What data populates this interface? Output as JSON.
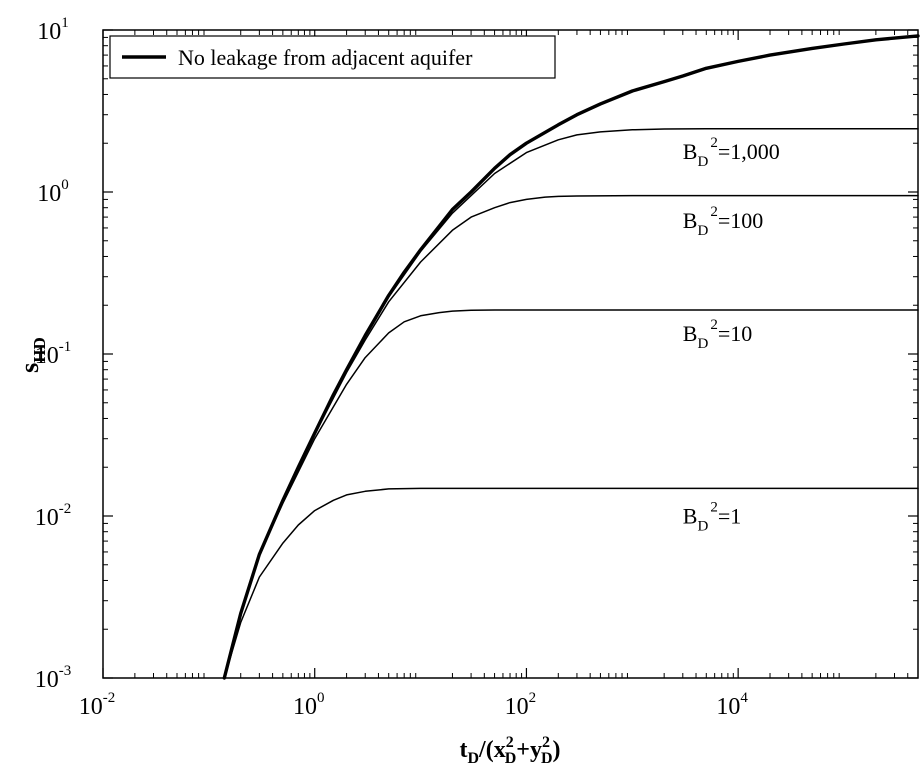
{
  "chart_data": {
    "type": "line",
    "x_scale": "log",
    "y_scale": "log",
    "xlim": [
      0.01,
      500000
    ],
    "ylim": [
      0.001,
      10
    ],
    "grid": false,
    "legend": {
      "placement": "top-left",
      "entries": [
        "No leakage from adjacent aquifer"
      ]
    },
    "xlabel": {
      "parts": [
        "t",
        "D",
        "/(x",
        "2",
        "D",
        "+y",
        "2",
        "D",
        ")"
      ]
    },
    "ylabel": {
      "base": "s",
      "sub": "HD"
    },
    "x_ticks": [
      {
        "value": 0.01,
        "base": "10",
        "exp": "-2"
      },
      {
        "value": 1,
        "base": "10",
        "exp": "0"
      },
      {
        "value": 100,
        "base": "10",
        "exp": "2"
      },
      {
        "value": 10000,
        "base": "10",
        "exp": "4"
      }
    ],
    "y_ticks": [
      {
        "value": 0.001,
        "base": "10",
        "exp": "-3"
      },
      {
        "value": 0.01,
        "base": "10",
        "exp": "-2"
      },
      {
        "value": 0.1,
        "base": "10",
        "exp": "-1"
      },
      {
        "value": 1,
        "base": "10",
        "exp": "0"
      },
      {
        "value": 10,
        "base": "10",
        "exp": "1"
      }
    ],
    "series": [
      {
        "name": "No leakage from adjacent aquifer",
        "style": "thick",
        "color": "#000000",
        "points": [
          [
            0.14,
            0.001
          ],
          [
            0.2,
            0.0025
          ],
          [
            0.3,
            0.0058
          ],
          [
            0.5,
            0.0125
          ],
          [
            0.7,
            0.02
          ],
          [
            1,
            0.0325
          ],
          [
            1.5,
            0.056
          ],
          [
            2,
            0.08
          ],
          [
            3,
            0.13
          ],
          [
            5,
            0.23
          ],
          [
            7,
            0.32
          ],
          [
            10,
            0.44
          ],
          [
            20,
            0.78
          ],
          [
            30,
            1.0
          ],
          [
            50,
            1.4
          ],
          [
            70,
            1.7
          ],
          [
            100,
            2.0
          ],
          [
            200,
            2.6
          ],
          [
            300,
            3.0
          ],
          [
            500,
            3.5
          ],
          [
            1000,
            4.2
          ],
          [
            2000,
            4.8
          ],
          [
            3000,
            5.2
          ],
          [
            5000,
            5.8
          ],
          [
            10000,
            6.4
          ],
          [
            20000,
            7.0
          ],
          [
            50000,
            7.7
          ],
          [
            100000,
            8.2
          ],
          [
            200000,
            8.7
          ],
          [
            500000,
            9.2
          ]
        ]
      },
      {
        "name": "B_D^2=1,000",
        "style": "thin",
        "color": "#000000",
        "points": [
          [
            0.14,
            0.001
          ],
          [
            0.2,
            0.0025
          ],
          [
            0.3,
            0.0058
          ],
          [
            0.5,
            0.0125
          ],
          [
            1,
            0.0325
          ],
          [
            2,
            0.079
          ],
          [
            3,
            0.128
          ],
          [
            5,
            0.225
          ],
          [
            10,
            0.43
          ],
          [
            20,
            0.74
          ],
          [
            50,
            1.3
          ],
          [
            100,
            1.75
          ],
          [
            200,
            2.1
          ],
          [
            300,
            2.25
          ],
          [
            500,
            2.35
          ],
          [
            1000,
            2.42
          ],
          [
            2000,
            2.45
          ],
          [
            5000,
            2.46
          ],
          [
            500000,
            2.46
          ]
        ]
      },
      {
        "name": "B_D^2=100",
        "style": "thin",
        "color": "#000000",
        "points": [
          [
            0.14,
            0.001
          ],
          [
            0.2,
            0.0025
          ],
          [
            0.3,
            0.0058
          ],
          [
            0.5,
            0.0125
          ],
          [
            1,
            0.032
          ],
          [
            2,
            0.077
          ],
          [
            3,
            0.122
          ],
          [
            5,
            0.21
          ],
          [
            10,
            0.37
          ],
          [
            20,
            0.58
          ],
          [
            30,
            0.7
          ],
          [
            50,
            0.8
          ],
          [
            70,
            0.86
          ],
          [
            100,
            0.9
          ],
          [
            150,
            0.93
          ],
          [
            200,
            0.94
          ],
          [
            300,
            0.945
          ],
          [
            1000,
            0.95
          ],
          [
            500000,
            0.95
          ]
        ]
      },
      {
        "name": "B_D^2=10",
        "style": "thin",
        "color": "#000000",
        "points": [
          [
            0.14,
            0.001
          ],
          [
            0.2,
            0.0025
          ],
          [
            0.3,
            0.0058
          ],
          [
            0.5,
            0.012
          ],
          [
            1,
            0.03
          ],
          [
            2,
            0.065
          ],
          [
            3,
            0.095
          ],
          [
            5,
            0.135
          ],
          [
            7,
            0.158
          ],
          [
            10,
            0.172
          ],
          [
            15,
            0.18
          ],
          [
            20,
            0.184
          ],
          [
            30,
            0.186
          ],
          [
            50,
            0.187
          ],
          [
            100,
            0.187
          ],
          [
            500000,
            0.187
          ]
        ]
      },
      {
        "name": "B_D^2=1",
        "style": "thin",
        "color": "#000000",
        "points": [
          [
            0.14,
            0.001
          ],
          [
            0.2,
            0.0022
          ],
          [
            0.3,
            0.0042
          ],
          [
            0.5,
            0.0068
          ],
          [
            0.7,
            0.0088
          ],
          [
            1,
            0.0108
          ],
          [
            1.5,
            0.0125
          ],
          [
            2,
            0.0135
          ],
          [
            3,
            0.0142
          ],
          [
            5,
            0.0147
          ],
          [
            10,
            0.0148
          ],
          [
            500000,
            0.0148
          ]
        ]
      }
    ],
    "annotations": [
      {
        "base": "B",
        "sub": "D",
        "sup": "2",
        "rest": "=1,000",
        "x": 3000,
        "y": 1.6
      },
      {
        "base": "B",
        "sub": "D",
        "sup": "2",
        "rest": "=100",
        "x": 3000,
        "y": 0.6
      },
      {
        "base": "B",
        "sub": "D",
        "sup": "2",
        "rest": "=10",
        "x": 3000,
        "y": 0.12
      },
      {
        "base": "B",
        "sub": "D",
        "sup": "2",
        "rest": "=1",
        "x": 3000,
        "y": 0.009
      }
    ]
  }
}
